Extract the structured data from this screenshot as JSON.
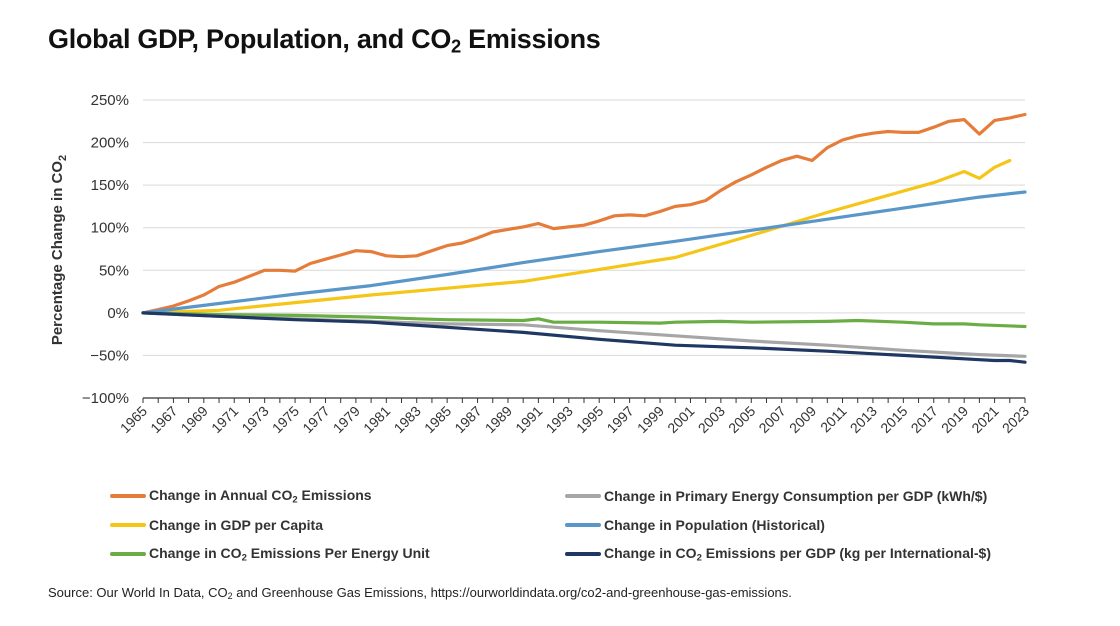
{
  "title": {
    "main": "Global GDP, Population, and CO",
    "sub": "2",
    "rest": " Emissions"
  },
  "source": {
    "pre": "Source: Our World In Data, CO",
    "sub": "2",
    "post": " and Greenhouse Gas Emissions, https://ourworldindata.org/co2-and-greenhouse-gas-emissions."
  },
  "chart_data": {
    "type": "line",
    "title": "Global GDP, Population, and CO2 Emissions",
    "xlabel": "",
    "ylabel": "Percentage Change in CO2",
    "ylabel_parts": {
      "main": "Percentage Change in CO",
      "sub": "2"
    },
    "ylim": [
      -100,
      250
    ],
    "yticks": [
      -100,
      -50,
      0,
      50,
      100,
      150,
      200,
      250
    ],
    "ytick_labels": [
      "−100%",
      "−50%",
      "0%",
      "50%",
      "100%",
      "150%",
      "200%",
      "250%"
    ],
    "xlim": [
      1965,
      2023
    ],
    "xticks": [
      1965,
      1967,
      1969,
      1971,
      1973,
      1975,
      1977,
      1979,
      1981,
      1983,
      1985,
      1987,
      1989,
      1991,
      1993,
      1995,
      1997,
      1999,
      2001,
      2003,
      2005,
      2007,
      2009,
      2011,
      2013,
      2015,
      2017,
      2019,
      2021,
      2023
    ],
    "grid": true,
    "legend_position": "bottom",
    "series": [
      {
        "name": "Change in Annual CO2 Emissions",
        "label_parts": {
          "main": "Change in Annual CO",
          "sub": "2",
          "rest": " Emissions"
        },
        "color": "#E57C3A",
        "x": [
          1965,
          1966,
          1967,
          1968,
          1969,
          1970,
          1971,
          1972,
          1973,
          1974,
          1975,
          1976,
          1977,
          1978,
          1979,
          1980,
          1981,
          1982,
          1983,
          1984,
          1985,
          1986,
          1987,
          1988,
          1989,
          1990,
          1991,
          1992,
          1993,
          1994,
          1995,
          1996,
          1997,
          1998,
          1999,
          2000,
          2001,
          2002,
          2003,
          2004,
          2005,
          2006,
          2007,
          2008,
          2009,
          2010,
          2011,
          2012,
          2013,
          2014,
          2015,
          2016,
          2017,
          2018,
          2019,
          2020,
          2021,
          2022,
          2023
        ],
        "values": [
          0,
          4,
          8,
          14,
          21,
          31,
          36,
          43,
          50,
          50,
          49,
          58,
          63,
          68,
          73,
          72,
          67,
          66,
          67,
          73,
          79,
          82,
          88,
          95,
          98,
          101,
          105,
          99,
          101,
          103,
          108,
          114,
          115,
          114,
          119,
          125,
          127,
          132,
          144,
          154,
          162,
          171,
          179,
          184,
          179,
          194,
          203,
          208,
          211,
          213,
          212,
          212,
          218,
          225,
          227,
          210,
          226,
          229,
          233
        ]
      },
      {
        "name": "Change in GDP per Capita",
        "label_parts": {
          "main": "Change in GDP per Capita",
          "sub": "",
          "rest": ""
        },
        "color": "#F5C518",
        "x": [
          1965,
          1970,
          1975,
          1980,
          1985,
          1990,
          1995,
          2000,
          2005,
          2010,
          2015,
          2017,
          2019,
          2020,
          2021,
          2022
        ],
        "values": [
          0,
          3,
          12,
          21,
          29,
          37,
          51,
          65,
          91,
          118,
          143,
          153,
          166,
          158,
          171,
          179
        ]
      },
      {
        "name": "Change in CO2 Emissions Per Energy Unit",
        "label_parts": {
          "main": "Change in CO",
          "sub": "2",
          "rest": " Emissions Per Energy Unit"
        },
        "color": "#6BAD45",
        "x": [
          1965,
          1970,
          1975,
          1980,
          1983,
          1985,
          1990,
          1991,
          1992,
          1995,
          1999,
          2000,
          2003,
          2005,
          2010,
          2012,
          2015,
          2017,
          2019,
          2020,
          2023
        ],
        "values": [
          0,
          -2,
          -3,
          -5,
          -7,
          -8,
          -9,
          -7,
          -11,
          -11,
          -12,
          -11,
          -10,
          -11,
          -10,
          -9,
          -11,
          -13,
          -13,
          -14,
          -16
        ]
      },
      {
        "name": "Change in Primary Energy Consumption per GDP (kWh/$)",
        "label_parts": {
          "main": "Change in Primary Energy Consumption per GDP (kWh/$)",
          "sub": "",
          "rest": ""
        },
        "color": "#A6A6A6",
        "x": [
          1965,
          1970,
          1975,
          1980,
          1985,
          1990,
          1995,
          2000,
          2005,
          2010,
          2015,
          2020,
          2023
        ],
        "values": [
          0,
          -4,
          -7,
          -10,
          -13,
          -14,
          -21,
          -27,
          -33,
          -38,
          -44,
          -49,
          -51
        ]
      },
      {
        "name": "Change in Population (Historical)",
        "label_parts": {
          "main": "Change in Population (Historical)",
          "sub": "",
          "rest": ""
        },
        "color": "#5A97C9",
        "x": [
          1965,
          1970,
          1975,
          1980,
          1985,
          1990,
          1995,
          2000,
          2005,
          2010,
          2015,
          2020,
          2023
        ],
        "values": [
          0,
          11,
          22,
          32,
          45,
          59,
          72,
          84,
          97,
          110,
          123,
          136,
          142
        ]
      },
      {
        "name": "Change in CO2 Emissions per GDP (kg per International-$)",
        "label_parts": {
          "main": "Change in CO",
          "sub": "2",
          "rest": " Emissions per GDP (kg per International-$)"
        },
        "color": "#1F3763",
        "x": [
          1965,
          1970,
          1975,
          1980,
          1985,
          1990,
          1995,
          2000,
          2005,
          2010,
          2015,
          2020,
          2021,
          2022,
          2023
        ],
        "values": [
          0,
          -4,
          -8,
          -11,
          -17,
          -23,
          -31,
          -38,
          -41,
          -45,
          -50,
          -55,
          -56,
          -56,
          -58
        ]
      }
    ],
    "legend_order": [
      0,
      3,
      1,
      4,
      2,
      5
    ]
  }
}
